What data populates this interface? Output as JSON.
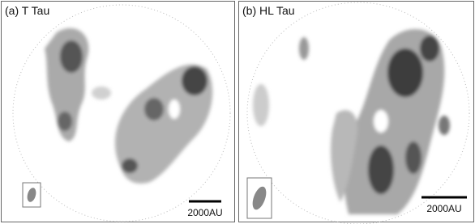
{
  "panels": [
    {
      "label": "(a) T Tau",
      "scale_bar": "2000AU"
    },
    {
      "label": "(b) HL Tau",
      "scale_bar": "2000AU"
    }
  ]
}
